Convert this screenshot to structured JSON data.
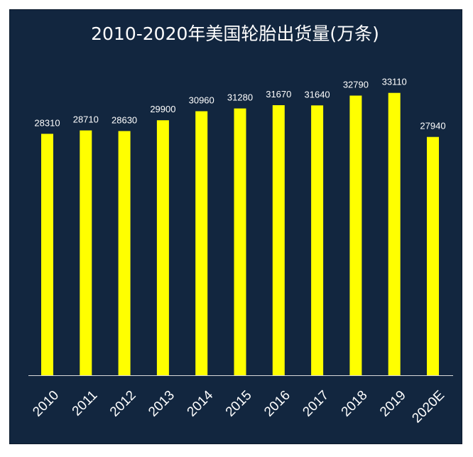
{
  "chart_data": {
    "type": "bar",
    "title": "2010-2020年美国轮胎出货量(万条)",
    "categories": [
      "2010",
      "2011",
      "2012",
      "2013",
      "2014",
      "2015",
      "2016",
      "2017",
      "2018",
      "2019",
      "2020E"
    ],
    "values": [
      28310,
      28710,
      28630,
      29900,
      30960,
      31280,
      31670,
      31640,
      32790,
      33110,
      27940
    ],
    "value_labels": [
      "28310",
      "28710",
      "28630",
      "29900",
      "30960",
      "31280",
      "31670",
      "31640",
      "32790",
      "33110",
      "27940"
    ],
    "ylim": [
      0,
      36000
    ],
    "grid": false,
    "legend": "none",
    "bar_color": "#ffff00",
    "background_color": "#12263f",
    "axis_color": "#d9d9d9"
  }
}
